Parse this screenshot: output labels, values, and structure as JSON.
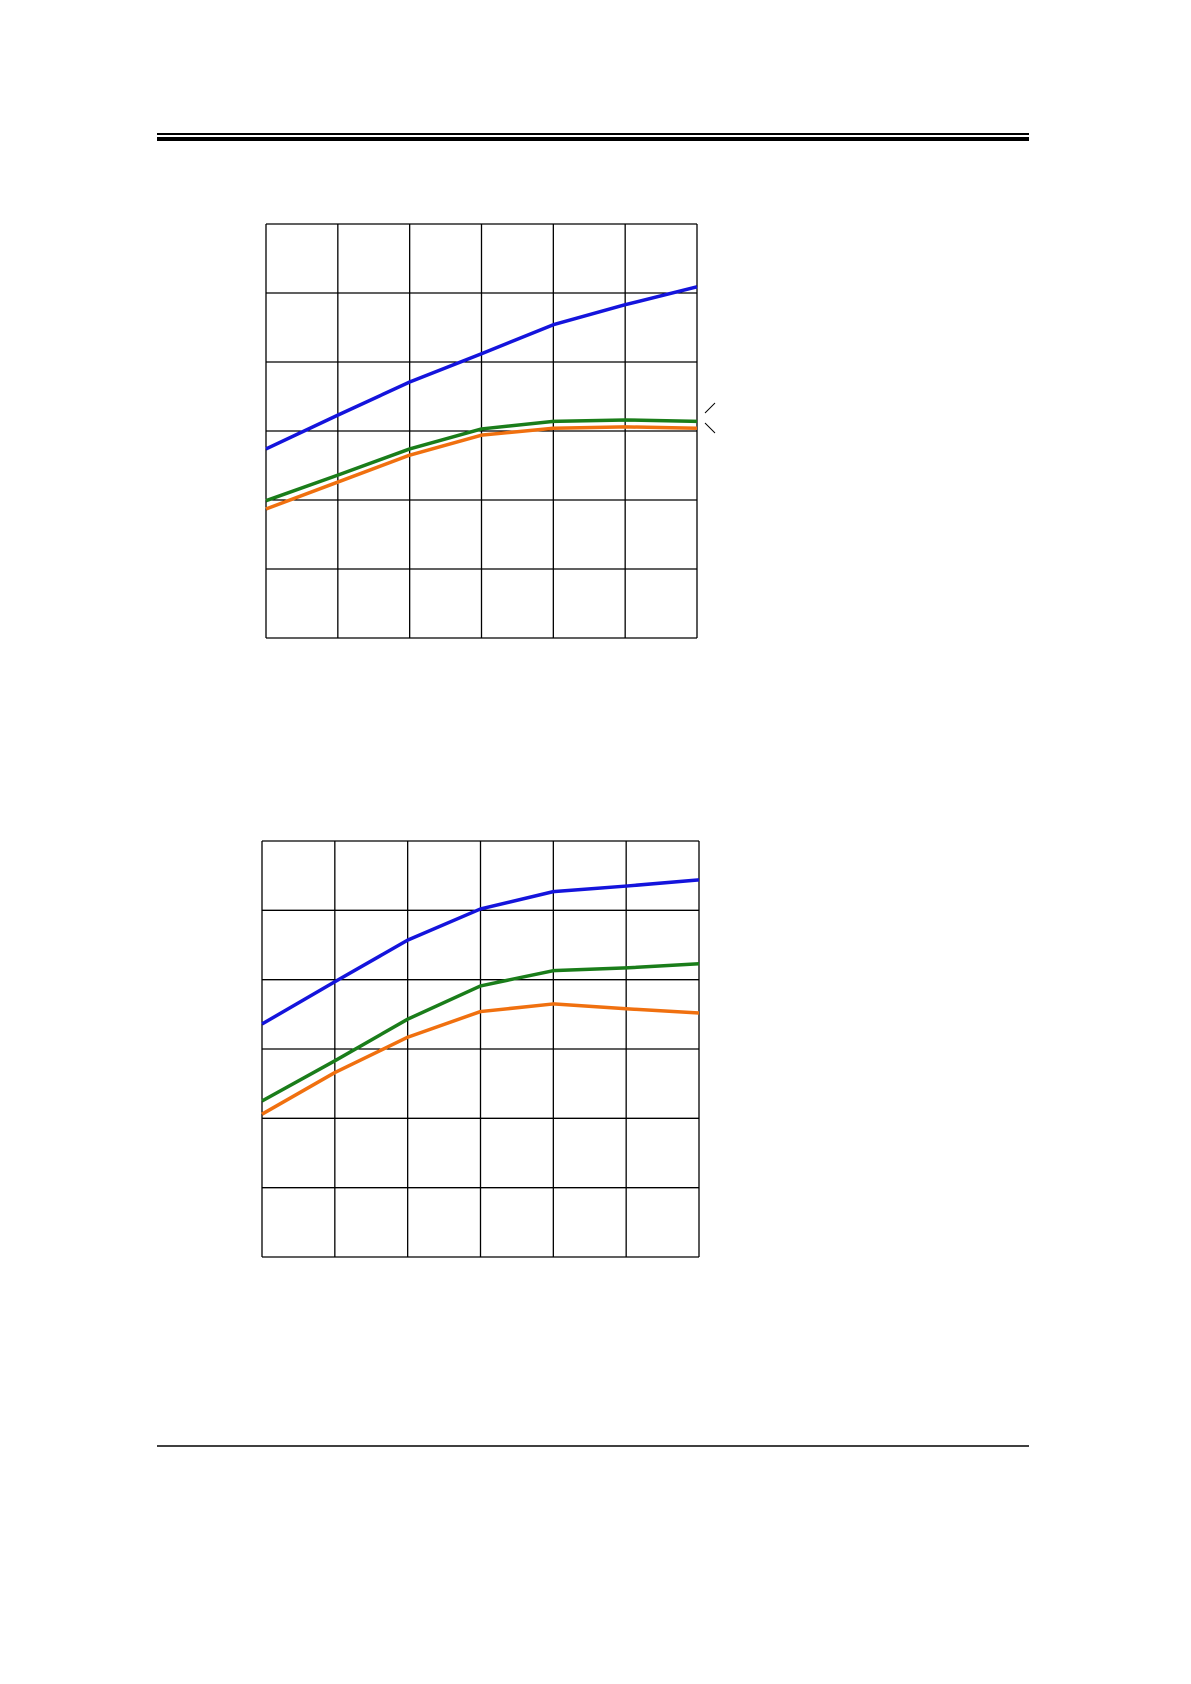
{
  "chart_data": [
    {
      "type": "line",
      "x": [
        0,
        1,
        2,
        3,
        4,
        5,
        6
      ],
      "xlim": [
        0,
        6
      ],
      "ylim": [
        0,
        6
      ],
      "xticks": [
        0,
        1,
        2,
        3,
        4,
        5,
        6
      ],
      "yticks": [
        0,
        1,
        2,
        3,
        4,
        5,
        6
      ],
      "grid": true,
      "series": [
        {
          "color": "#1414dc",
          "values": [
            2.74,
            3.23,
            3.71,
            4.12,
            4.54,
            4.83,
            5.09
          ]
        },
        {
          "color": "#1a7d1a",
          "values": [
            1.99,
            2.36,
            2.74,
            3.03,
            3.14,
            3.16,
            3.14
          ]
        },
        {
          "color": "#f0700f",
          "values": [
            1.87,
            2.26,
            2.65,
            2.94,
            3.04,
            3.06,
            3.04
          ]
        }
      ]
    },
    {
      "type": "line",
      "x": [
        0,
        1,
        2,
        3,
        4,
        5,
        6
      ],
      "xlim": [
        0,
        6
      ],
      "ylim": [
        0,
        6
      ],
      "xticks": [
        0,
        1,
        2,
        3,
        4,
        5,
        6
      ],
      "yticks": [
        0,
        1,
        2,
        3,
        4,
        5,
        6
      ],
      "grid": true,
      "series": [
        {
          "color": "#1414dc",
          "values": [
            3.36,
            3.97,
            4.57,
            5.02,
            5.27,
            5.35,
            5.44
          ]
        },
        {
          "color": "#1a7d1a",
          "values": [
            2.25,
            2.83,
            3.43,
            3.91,
            4.13,
            4.17,
            4.23
          ]
        },
        {
          "color": "#f0700f",
          "values": [
            2.06,
            2.66,
            3.17,
            3.54,
            3.65,
            3.58,
            3.52
          ]
        }
      ]
    }
  ]
}
